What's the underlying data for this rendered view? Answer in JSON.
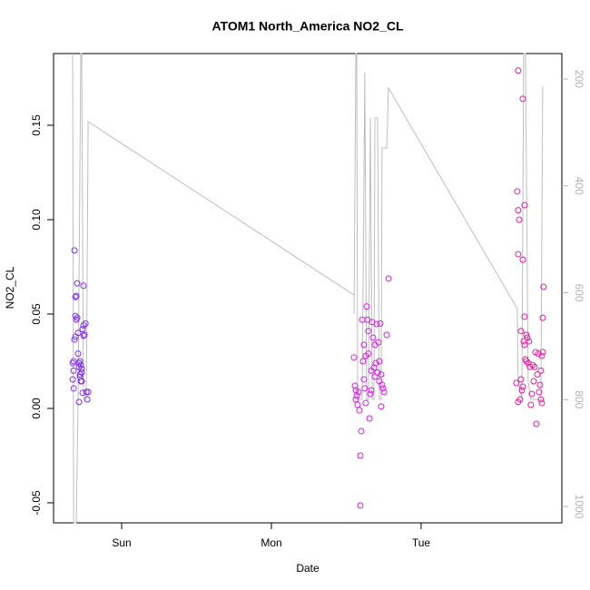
{
  "chart_data": {
    "type": "scatter",
    "title": "ATOM1 North_America NO2_CL",
    "xlabel": "Date",
    "ylabel": "NO2_CL",
    "xlim": [
      -0.455,
      2.94
    ],
    "xticks": [
      {
        "value": 0,
        "label": "Sun"
      },
      {
        "value": 1,
        "label": "Mon"
      },
      {
        "value": 2,
        "label": "Tue"
      }
    ],
    "ylim": [
      -0.0606,
      0.188
    ],
    "yticks": [
      -0.05,
      {
        "value": 0,
        "label": "0.00"
      },
      0.05,
      {
        "value": 0.1,
        "label": "0.10"
      },
      0.15
    ],
    "y2lim": [
      1030.6,
      152.4
    ],
    "y2ticks": [
      200,
      400,
      600,
      800,
      1000
    ],
    "series": [
      {
        "type": "line",
        "axis": "y2",
        "color": "#bebebe",
        "x": [
          -0.327,
          -0.321,
          -0.303,
          -0.291,
          -0.273,
          -0.267,
          -0.255,
          -0.248,
          -0.236,
          -0.224,
          1.552,
          1.552,
          1.564,
          1.57,
          1.576,
          1.588,
          1.606,
          1.624,
          1.636,
          1.648,
          1.661,
          1.673,
          1.685,
          1.691,
          1.709,
          1.721,
          1.733,
          1.739,
          1.77,
          1.782,
          2.642,
          2.648,
          2.673,
          2.685,
          2.697,
          2.703,
          2.715,
          2.733,
          2.764,
          2.8,
          2.812
        ],
        "values": [
          152.4,
          1030.6,
          1030.6,
          799.6,
          152.4,
          152.4,
          799.6,
          799.6,
          799.6,
          279.8,
          604.2,
          639.9,
          152.4,
          152.4,
          799.6,
          799.6,
          799.6,
          188.1,
          799.6,
          799.6,
          273.0,
          799.6,
          799.6,
          273.0,
          273.0,
          799.6,
          799.6,
          329.1,
          329.1,
          217.0,
          629.7,
          765.6,
          799.6,
          152.4,
          152.4,
          358.0,
          765.6,
          799.6,
          799.6,
          799.6,
          213.6
        ]
      },
      {
        "type": "scatter",
        "color": "#7f2ff0",
        "x": [
          -0.321,
          -0.327,
          -0.321,
          -0.327,
          -0.321,
          -0.315,
          -0.309,
          -0.309,
          -0.309,
          -0.303,
          -0.315,
          -0.297,
          -0.297,
          -0.303,
          -0.291,
          -0.291,
          -0.285,
          -0.285,
          -0.279,
          -0.279,
          -0.273,
          -0.285,
          -0.279,
          -0.273,
          -0.267,
          -0.267,
          -0.261,
          -0.255,
          -0.248,
          -0.255,
          -0.242,
          -0.236,
          -0.23,
          -0.224,
          -0.267,
          -0.255,
          -0.261
        ],
        "values": [
          0.0106,
          0.0154,
          0.02,
          0.024,
          0.025,
          0.0365,
          0.038,
          0.049,
          0.059,
          0.0596,
          0.0837,
          0.0663,
          0.048,
          0.047,
          0.04,
          0.029,
          0.024,
          0.022,
          0.018,
          0.0168,
          0.0144,
          0.0034,
          0.025,
          0.023,
          0.021,
          0.019,
          0.042,
          0.044,
          0.039,
          0.065,
          0.045,
          0.0087,
          0.0048,
          0.0087,
          0.0144,
          0.0385,
          0.0082
        ]
      },
      {
        "type": "scatter",
        "color": "#d61ee6",
        "x": [
          1.552,
          1.558,
          1.564,
          1.57,
          1.564,
          1.576,
          1.582,
          1.588,
          1.6,
          1.594,
          1.594,
          1.606,
          1.612,
          1.618,
          1.618,
          1.624,
          1.63,
          1.636,
          1.642,
          1.648,
          1.648,
          1.655,
          1.661,
          1.667,
          1.673,
          1.679,
          1.685,
          1.691,
          1.691,
          1.697,
          1.703,
          1.709,
          1.715,
          1.721,
          1.727,
          1.733,
          1.733,
          1.739,
          1.745,
          1.752,
          1.77,
          1.782,
          1.667,
          1.63,
          1.721
        ],
        "values": [
          0.027,
          0.012,
          0.0096,
          0.0067,
          0.0048,
          0.0019,
          0.0087,
          -0.001,
          -0.012,
          -0.025,
          -0.0514,
          0.047,
          0.025,
          0.0337,
          0.0154,
          0.0106,
          0.0029,
          0.054,
          0.047,
          0.041,
          0.029,
          -0.0053,
          0.0077,
          0.0096,
          0.0457,
          0.0375,
          0.0216,
          0.0337,
          0.0168,
          0.024,
          0.0447,
          0.019,
          0.035,
          0.025,
          0.045,
          0.018,
          0.001,
          0.0125,
          0.0106,
          0.0087,
          0.039,
          0.0688,
          0.02,
          0.0279,
          0.0144
        ]
      },
      {
        "type": "scatter",
        "color": "#e31ea0",
        "x": [
          2.648,
          2.642,
          2.648,
          2.655,
          2.648,
          2.679,
          2.691,
          2.679,
          2.691,
          2.636,
          2.648,
          2.661,
          2.667,
          2.673,
          2.679,
          2.685,
          2.691,
          2.697,
          2.703,
          2.709,
          2.715,
          2.721,
          2.727,
          2.733,
          2.739,
          2.745,
          2.752,
          2.758,
          2.764,
          2.77,
          2.776,
          2.782,
          2.788,
          2.794,
          2.8,
          2.806,
          2.806,
          2.812,
          2.812,
          2.818,
          2.8,
          2.667,
          2.703
        ],
        "values": [
          0.179,
          0.115,
          0.105,
          0.1,
          0.0817,
          0.164,
          0.1077,
          0.0788,
          0.0486,
          0.0135,
          0.0034,
          0.0048,
          0.0154,
          0.0096,
          0.0115,
          0.0356,
          0.0337,
          0.026,
          0.039,
          0.0375,
          0.024,
          0.0356,
          0.022,
          0.0019,
          0.0077,
          0.023,
          0.0144,
          0.022,
          0.0298,
          -0.0082,
          0.018,
          0.029,
          0.0087,
          0.0125,
          0.0048,
          0.0029,
          0.0279,
          0.048,
          0.0298,
          0.0644,
          0.02,
          0.041,
          0.025
        ]
      }
    ]
  }
}
